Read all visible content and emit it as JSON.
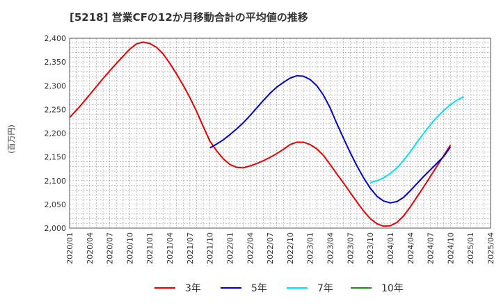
{
  "chart_data": {
    "type": "line",
    "title": "[5218]  営業CFの12か月移動合計の平均値の推移",
    "ylabel": "(百万円)",
    "xlabel": "",
    "ylim": [
      2000,
      2400
    ],
    "yticks": [
      2000,
      2050,
      2100,
      2150,
      2200,
      2250,
      2300,
      2350,
      2400
    ],
    "ytick_labels": [
      "2,000",
      "2,050",
      "2,100",
      "2,150",
      "2,200",
      "2,250",
      "2,300",
      "2,350",
      "2,400"
    ],
    "xlim": [
      "2020-01",
      "2025-04"
    ],
    "xtick_labels": [
      "2020/01",
      "2020/04",
      "2020/07",
      "2020/10",
      "2021/01",
      "2021/04",
      "2021/07",
      "2021/10",
      "2022/01",
      "2022/04",
      "2022/07",
      "2022/10",
      "2023/01",
      "2023/04",
      "2023/07",
      "2023/10",
      "2024/01",
      "2024/04",
      "2024/07",
      "2024/10",
      "2025/01",
      "2025/04"
    ],
    "grid": true,
    "legend_position": "bottom",
    "series": [
      {
        "name": "3年",
        "color": "#e60000",
        "points": [
          [
            "2020-01",
            2233
          ],
          [
            "2020-02",
            2248
          ],
          [
            "2020-03",
            2264
          ],
          [
            "2020-04",
            2281
          ],
          [
            "2020-05",
            2298
          ],
          [
            "2020-06",
            2315
          ],
          [
            "2020-07",
            2331
          ],
          [
            "2020-08",
            2347
          ],
          [
            "2020-09",
            2362
          ],
          [
            "2020-10",
            2377
          ],
          [
            "2020-11",
            2388
          ],
          [
            "2020-12",
            2392
          ],
          [
            "2021-01",
            2389
          ],
          [
            "2021-02",
            2381
          ],
          [
            "2021-03",
            2367
          ],
          [
            "2021-04",
            2347
          ],
          [
            "2021-05",
            2325
          ],
          [
            "2021-06",
            2301
          ],
          [
            "2021-07",
            2275
          ],
          [
            "2021-08",
            2246
          ],
          [
            "2021-09",
            2214
          ],
          [
            "2021-10",
            2183
          ],
          [
            "2021-11",
            2163
          ],
          [
            "2021-12",
            2146
          ],
          [
            "2022-01",
            2134
          ],
          [
            "2022-02",
            2128
          ],
          [
            "2022-03",
            2127
          ],
          [
            "2022-04",
            2131
          ],
          [
            "2022-05",
            2136
          ],
          [
            "2022-06",
            2142
          ],
          [
            "2022-07",
            2149
          ],
          [
            "2022-08",
            2157
          ],
          [
            "2022-09",
            2166
          ],
          [
            "2022-10",
            2176
          ],
          [
            "2022-11",
            2181
          ],
          [
            "2022-12",
            2181
          ],
          [
            "2023-01",
            2176
          ],
          [
            "2023-02",
            2167
          ],
          [
            "2023-03",
            2153
          ],
          [
            "2023-04",
            2134
          ],
          [
            "2023-05",
            2114
          ],
          [
            "2023-06",
            2095
          ],
          [
            "2023-07",
            2075
          ],
          [
            "2023-08",
            2055
          ],
          [
            "2023-09",
            2036
          ],
          [
            "2023-10",
            2020
          ],
          [
            "2023-11",
            2009
          ],
          [
            "2023-12",
            2004
          ],
          [
            "2024-01",
            2005
          ],
          [
            "2024-02",
            2012
          ],
          [
            "2024-03",
            2026
          ],
          [
            "2024-04",
            2045
          ],
          [
            "2024-05",
            2066
          ],
          [
            "2024-06",
            2087
          ],
          [
            "2024-07",
            2109
          ],
          [
            "2024-08",
            2131
          ],
          [
            "2024-09",
            2153
          ],
          [
            "2024-10",
            2175
          ]
        ]
      },
      {
        "name": "5年",
        "color": "#0000cc",
        "points": [
          [
            "2021-10",
            2169
          ],
          [
            "2021-11",
            2177
          ],
          [
            "2021-12",
            2186
          ],
          [
            "2022-01",
            2197
          ],
          [
            "2022-02",
            2209
          ],
          [
            "2022-03",
            2222
          ],
          [
            "2022-04",
            2237
          ],
          [
            "2022-05",
            2253
          ],
          [
            "2022-06",
            2269
          ],
          [
            "2022-07",
            2284
          ],
          [
            "2022-08",
            2297
          ],
          [
            "2022-09",
            2307
          ],
          [
            "2022-10",
            2316
          ],
          [
            "2022-11",
            2321
          ],
          [
            "2022-12",
            2320
          ],
          [
            "2023-01",
            2313
          ],
          [
            "2023-02",
            2300
          ],
          [
            "2023-03",
            2280
          ],
          [
            "2023-04",
            2253
          ],
          [
            "2023-05",
            2220
          ],
          [
            "2023-06",
            2189
          ],
          [
            "2023-07",
            2159
          ],
          [
            "2023-08",
            2131
          ],
          [
            "2023-09",
            2106
          ],
          [
            "2023-10",
            2084
          ],
          [
            "2023-11",
            2067
          ],
          [
            "2023-12",
            2057
          ],
          [
            "2024-01",
            2053
          ],
          [
            "2024-02",
            2056
          ],
          [
            "2024-03",
            2065
          ],
          [
            "2024-04",
            2079
          ],
          [
            "2024-05",
            2094
          ],
          [
            "2024-06",
            2109
          ],
          [
            "2024-07",
            2123
          ],
          [
            "2024-08",
            2137
          ],
          [
            "2024-09",
            2151
          ],
          [
            "2024-10",
            2171
          ]
        ]
      },
      {
        "name": "7年",
        "color": "#00e5ee",
        "points": [
          [
            "2023-10",
            2096
          ],
          [
            "2023-11",
            2100
          ],
          [
            "2023-12",
            2106
          ],
          [
            "2024-01",
            2115
          ],
          [
            "2024-02",
            2127
          ],
          [
            "2024-03",
            2143
          ],
          [
            "2024-04",
            2161
          ],
          [
            "2024-05",
            2181
          ],
          [
            "2024-06",
            2200
          ],
          [
            "2024-07",
            2218
          ],
          [
            "2024-08",
            2234
          ],
          [
            "2024-09",
            2248
          ],
          [
            "2024-10",
            2260
          ],
          [
            "2024-11",
            2270
          ],
          [
            "2024-12",
            2277
          ]
        ]
      },
      {
        "name": "10年",
        "color": "#228b22",
        "points": []
      }
    ]
  }
}
